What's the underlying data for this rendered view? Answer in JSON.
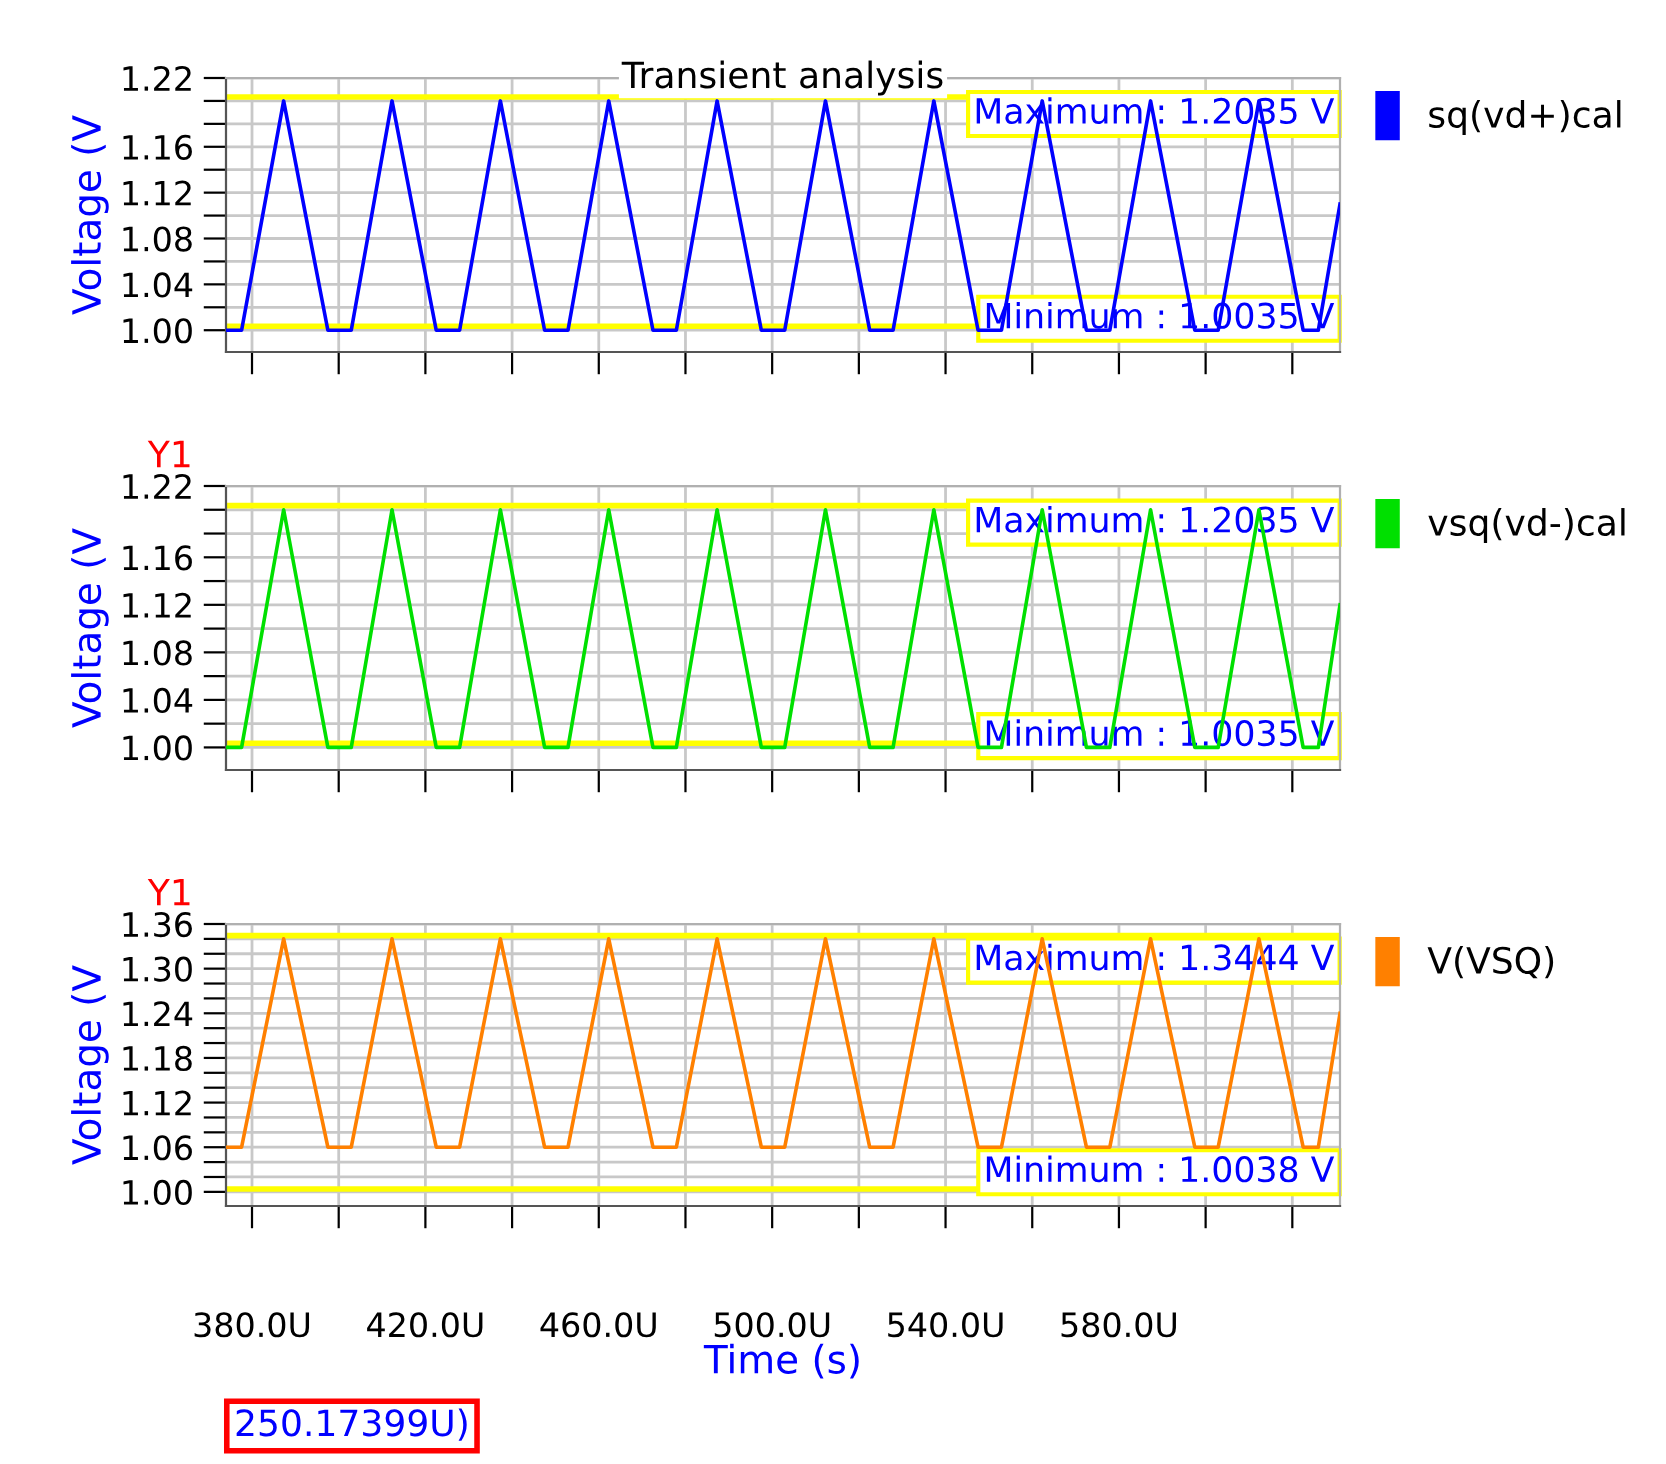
{
  "chart_data": [
    {
      "type": "line",
      "title": "Transient analysis",
      "ylabel": "Voltage (V",
      "xlim": [
        374,
        631
      ],
      "ylim": [
        0.981,
        1.22
      ],
      "xticks": [
        {
          "value": 380,
          "label": null
        },
        {
          "value": 400,
          "label": null
        },
        {
          "value": 420,
          "label": null
        },
        {
          "value": 440,
          "label": null
        },
        {
          "value": 460,
          "label": null
        },
        {
          "value": 480,
          "label": null
        },
        {
          "value": 500,
          "label": null
        },
        {
          "value": 520,
          "label": null
        },
        {
          "value": 540,
          "label": null
        },
        {
          "value": 560,
          "label": null
        },
        {
          "value": 580,
          "label": null
        },
        {
          "value": 600,
          "label": null
        },
        {
          "value": 620,
          "label": null
        }
      ],
      "yticks": [
        {
          "value": 1.0,
          "label": "1.00"
        },
        {
          "value": 1.02,
          "label": null
        },
        {
          "value": 1.04,
          "label": "1.04"
        },
        {
          "value": 1.06,
          "label": null
        },
        {
          "value": 1.08,
          "label": "1.08"
        },
        {
          "value": 1.1,
          "label": null
        },
        {
          "value": 1.12,
          "label": "1.12"
        },
        {
          "value": 1.14,
          "label": null
        },
        {
          "value": 1.16,
          "label": "1.16"
        },
        {
          "value": 1.18,
          "label": null
        },
        {
          "value": 1.2,
          "label": null
        },
        {
          "value": 1.22,
          "label": "1.22"
        }
      ],
      "tick_labels": "y",
      "grid": true,
      "legend": "right",
      "ref_lines": [
        {
          "axis": "y",
          "value": 1.2035,
          "label": "Maximum : 1.2035 V",
          "color": "#ffff00"
        },
        {
          "axis": "y",
          "value": 1.0035,
          "label": "Minimum : 1.0035 V",
          "color": "#ffff00"
        }
      ],
      "series": [
        {
          "name": "sq(vd+)cal",
          "color": "#0000ff",
          "x": [
            374,
            377.6,
            387.3,
            397.5,
            402.9,
            412.3,
            422.5,
            427.9,
            437.3,
            447.5,
            452.9,
            462.3,
            472.5,
            477.9,
            487.3,
            497.5,
            502.9,
            512.3,
            522.5,
            527.9,
            537.3,
            547.5,
            552.9,
            562.3,
            572.5,
            577.9,
            587.3,
            597.5,
            602.9,
            612.3,
            622.5,
            626,
            631
          ],
          "values": [
            1.0,
            1.0,
            1.2,
            1.0,
            1.0,
            1.2,
            1.0,
            1.0,
            1.2,
            1.0,
            1.0,
            1.2,
            1.0,
            1.0,
            1.2,
            1.0,
            1.0,
            1.2,
            1.0,
            1.0,
            1.2,
            1.0,
            1.0,
            1.2,
            1.0,
            1.0,
            1.2,
            1.0,
            1.0,
            1.2,
            1.0,
            1.0,
            1.11
          ]
        }
      ]
    },
    {
      "type": "line",
      "ylabel": "Voltage (V",
      "annotations": [
        "Y1"
      ],
      "xlim": [
        374,
        631
      ],
      "ylim": [
        0.981,
        1.22
      ],
      "xticks": [
        {
          "value": 380,
          "label": null
        },
        {
          "value": 400,
          "label": null
        },
        {
          "value": 420,
          "label": null
        },
        {
          "value": 440,
          "label": null
        },
        {
          "value": 460,
          "label": null
        },
        {
          "value": 480,
          "label": null
        },
        {
          "value": 500,
          "label": null
        },
        {
          "value": 520,
          "label": null
        },
        {
          "value": 540,
          "label": null
        },
        {
          "value": 560,
          "label": null
        },
        {
          "value": 580,
          "label": null
        },
        {
          "value": 600,
          "label": null
        },
        {
          "value": 620,
          "label": null
        }
      ],
      "yticks": [
        {
          "value": 1.0,
          "label": "1.00"
        },
        {
          "value": 1.02,
          "label": null
        },
        {
          "value": 1.04,
          "label": "1.04"
        },
        {
          "value": 1.06,
          "label": null
        },
        {
          "value": 1.08,
          "label": "1.08"
        },
        {
          "value": 1.1,
          "label": null
        },
        {
          "value": 1.12,
          "label": "1.12"
        },
        {
          "value": 1.14,
          "label": null
        },
        {
          "value": 1.16,
          "label": "1.16"
        },
        {
          "value": 1.18,
          "label": null
        },
        {
          "value": 1.2,
          "label": null
        },
        {
          "value": 1.22,
          "label": "1.22"
        }
      ],
      "tick_labels": "y",
      "grid": true,
      "legend": "right",
      "ref_lines": [
        {
          "axis": "y",
          "value": 1.2035,
          "label": "Maximum : 1.2035 V",
          "color": "#ffff00"
        },
        {
          "axis": "y",
          "value": 1.0035,
          "label": "Minimum : 1.0035 V",
          "color": "#ffff00"
        }
      ],
      "series": [
        {
          "name": "vsq(vd-)cal",
          "color": "#00e000",
          "x": [
            374,
            377.6,
            387.3,
            397.5,
            402.9,
            412.3,
            422.5,
            427.9,
            437.3,
            447.5,
            452.9,
            462.3,
            472.5,
            477.9,
            487.3,
            497.5,
            502.9,
            512.3,
            522.5,
            527.9,
            537.3,
            547.5,
            552.9,
            562.3,
            572.5,
            577.9,
            587.3,
            597.5,
            602.9,
            612.3,
            622.5,
            626,
            631
          ],
          "values": [
            1.0,
            1.0,
            1.2,
            1.0,
            1.0,
            1.2,
            1.0,
            1.0,
            1.2,
            1.0,
            1.0,
            1.2,
            1.0,
            1.0,
            1.2,
            1.0,
            1.0,
            1.2,
            1.0,
            1.0,
            1.2,
            1.0,
            1.0,
            1.2,
            1.0,
            1.0,
            1.2,
            1.0,
            1.0,
            1.2,
            1.0,
            1.0,
            1.12
          ]
        }
      ]
    },
    {
      "type": "line",
      "ylabel": "Voltage (V",
      "xlabel": "Time (s)",
      "annotations": [
        "Y1",
        "250.17399U)"
      ],
      "xlim": [
        374,
        631
      ],
      "ylim": [
        0.981,
        1.36
      ],
      "xticks": [
        {
          "value": 380,
          "label": "380.0U"
        },
        {
          "value": 400,
          "label": null
        },
        {
          "value": 420,
          "label": "420.0U"
        },
        {
          "value": 440,
          "label": null
        },
        {
          "value": 460,
          "label": "460.0U"
        },
        {
          "value": 480,
          "label": null
        },
        {
          "value": 500,
          "label": "500.0U"
        },
        {
          "value": 520,
          "label": null
        },
        {
          "value": 540,
          "label": "540.0U"
        },
        {
          "value": 560,
          "label": null
        },
        {
          "value": 580,
          "label": "580.0U"
        },
        {
          "value": 600,
          "label": null
        },
        {
          "value": 620,
          "label": null
        }
      ],
      "yticks": [
        {
          "value": 1.0,
          "label": "1.00"
        },
        {
          "value": 1.02,
          "label": null
        },
        {
          "value": 1.04,
          "label": null
        },
        {
          "value": 1.06,
          "label": "1.06"
        },
        {
          "value": 1.08,
          "label": null
        },
        {
          "value": 1.1,
          "label": null
        },
        {
          "value": 1.12,
          "label": "1.12"
        },
        {
          "value": 1.14,
          "label": null
        },
        {
          "value": 1.16,
          "label": null
        },
        {
          "value": 1.18,
          "label": "1.18"
        },
        {
          "value": 1.2,
          "label": null
        },
        {
          "value": 1.22,
          "label": null
        },
        {
          "value": 1.24,
          "label": "1.24"
        },
        {
          "value": 1.26,
          "label": null
        },
        {
          "value": 1.28,
          "label": null
        },
        {
          "value": 1.3,
          "label": "1.30"
        },
        {
          "value": 1.32,
          "label": null
        },
        {
          "value": 1.34,
          "label": null
        },
        {
          "value": 1.36,
          "label": "1.36"
        }
      ],
      "grid": true,
      "legend": "right",
      "ref_lines": [
        {
          "axis": "y",
          "value": 1.3444,
          "label": "Maximum : 1.3444 V",
          "color": "#ffff00"
        },
        {
          "axis": "y",
          "value": 1.0038,
          "label": "Minimum : 1.0038 V",
          "color": "#ffff00"
        }
      ],
      "series": [
        {
          "name": "V(VSQ)",
          "color": "#ff8000",
          "x": [
            374,
            377.6,
            387.3,
            397.5,
            402.9,
            412.3,
            422.5,
            427.9,
            437.3,
            447.5,
            452.9,
            462.3,
            472.5,
            477.9,
            487.3,
            497.5,
            502.9,
            512.3,
            522.5,
            527.9,
            537.3,
            547.5,
            552.9,
            562.3,
            572.5,
            577.9,
            587.3,
            597.5,
            602.9,
            612.3,
            622.5,
            626,
            631
          ],
          "values": [
            1.06,
            1.06,
            1.34,
            1.06,
            1.06,
            1.34,
            1.06,
            1.06,
            1.34,
            1.06,
            1.06,
            1.34,
            1.06,
            1.06,
            1.34,
            1.06,
            1.06,
            1.34,
            1.06,
            1.06,
            1.34,
            1.06,
            1.06,
            1.34,
            1.06,
            1.06,
            1.34,
            1.06,
            1.06,
            1.34,
            1.06,
            1.06,
            1.24
          ]
        }
      ]
    }
  ]
}
